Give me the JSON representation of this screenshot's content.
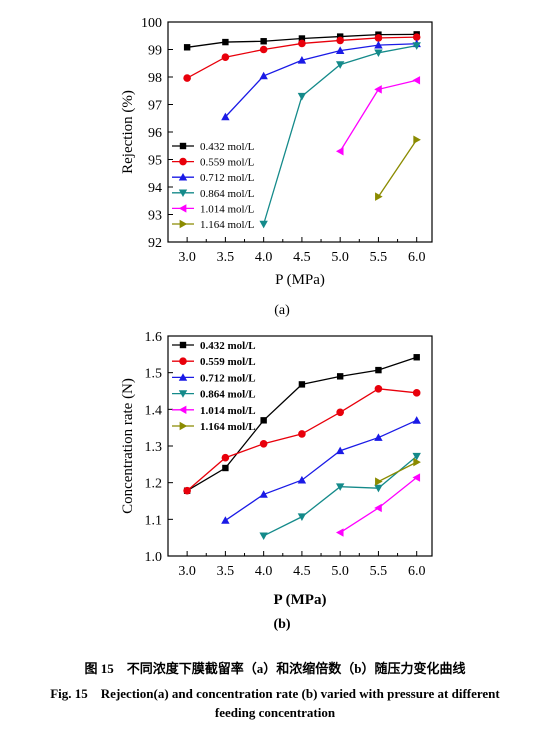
{
  "colors": [
    "#000000",
    "#e8000b",
    "#1a1ae6",
    "#148a8a",
    "#ff00ff",
    "#8b8b00"
  ],
  "chart_data": [
    {
      "type": "line",
      "sublabel": "(a)",
      "xlabel": "P (MPa)",
      "ylabel": "Rejection (%)",
      "xlim": [
        2.75,
        6.2
      ],
      "ylim": [
        92,
        100
      ],
      "xticks": [
        "3.0",
        "3.5",
        "4.0",
        "4.5",
        "5.0",
        "5.5",
        "6.0"
      ],
      "yticks": [
        "92",
        "93",
        "94",
        "95",
        "96",
        "97",
        "98",
        "99",
        "100"
      ],
      "legend_position": "lower-left",
      "series": [
        {
          "name": "0.432 mol/L",
          "marker": "square",
          "x": [
            3.0,
            3.5,
            4.0,
            4.5,
            5.0,
            5.5,
            6.0
          ],
          "y": [
            99.08,
            99.27,
            99.3,
            99.4,
            99.47,
            99.54,
            99.55
          ]
        },
        {
          "name": "0.559 mol/L",
          "marker": "circle",
          "x": [
            3.0,
            3.5,
            4.0,
            4.5,
            5.0,
            5.5,
            6.0
          ],
          "y": [
            97.96,
            98.72,
            99.0,
            99.22,
            99.33,
            99.42,
            99.45
          ]
        },
        {
          "name": "0.712 mol/L",
          "marker": "triangle-up",
          "x": [
            3.5,
            4.0,
            4.5,
            5.0,
            5.5,
            6.0
          ],
          "y": [
            96.55,
            98.04,
            98.61,
            98.96,
            99.16,
            99.21
          ]
        },
        {
          "name": "0.864 mol/L",
          "marker": "triangle-down",
          "x": [
            4.0,
            4.5,
            5.0,
            5.5,
            6.0
          ],
          "y": [
            92.65,
            97.3,
            98.45,
            98.88,
            99.14
          ]
        },
        {
          "name": "1.014 mol/L",
          "marker": "triangle-left",
          "x": [
            5.0,
            5.5,
            6.0
          ],
          "y": [
            95.3,
            97.55,
            97.88
          ]
        },
        {
          "name": "1.164 mol/L",
          "marker": "triangle-right",
          "x": [
            5.5,
            6.0
          ],
          "y": [
            93.65,
            95.72
          ]
        }
      ]
    },
    {
      "type": "line",
      "sublabel": "(b)",
      "xlabel": "P (MPa)",
      "ylabel": "Concentration rate (N)",
      "xlim": [
        2.75,
        6.2
      ],
      "ylim": [
        1.0,
        1.6
      ],
      "xticks": [
        "3.0",
        "3.5",
        "4.0",
        "4.5",
        "5.0",
        "5.5",
        "6.0"
      ],
      "yticks": [
        "1.0",
        "1.1",
        "1.2",
        "1.3",
        "1.4",
        "1.5",
        "1.6"
      ],
      "legend_position": "top-left",
      "series": [
        {
          "name": "0.432 mol/L",
          "marker": "square",
          "x": [
            3.0,
            3.5,
            4.0,
            4.5,
            5.0,
            5.5,
            6.0
          ],
          "y": [
            1.178,
            1.24,
            1.37,
            1.468,
            1.49,
            1.507,
            1.542
          ]
        },
        {
          "name": "0.559 mol/L",
          "marker": "circle",
          "x": [
            3.0,
            3.5,
            4.0,
            4.5,
            5.0,
            5.5,
            6.0
          ],
          "y": [
            1.178,
            1.268,
            1.306,
            1.333,
            1.392,
            1.456,
            1.445
          ]
        },
        {
          "name": "0.712 mol/L",
          "marker": "triangle-up",
          "x": [
            3.5,
            4.0,
            4.5,
            5.0,
            5.5,
            6.0
          ],
          "y": [
            1.097,
            1.168,
            1.207,
            1.287,
            1.323,
            1.37
          ]
        },
        {
          "name": "0.864 mol/L",
          "marker": "triangle-down",
          "x": [
            4.0,
            4.5,
            5.0,
            5.5,
            6.0
          ],
          "y": [
            1.055,
            1.107,
            1.189,
            1.185,
            1.272
          ]
        },
        {
          "name": "1.014 mol/L",
          "marker": "triangle-left",
          "x": [
            5.0,
            5.5,
            6.0
          ],
          "y": [
            1.064,
            1.131,
            1.214
          ]
        },
        {
          "name": "1.164 mol/L",
          "marker": "triangle-right",
          "x": [
            5.5,
            6.0
          ],
          "y": [
            1.203,
            1.256
          ]
        }
      ]
    }
  ],
  "caption": {
    "zh": "图 15　不同浓度下膜截留率（a）和浓缩倍数（b）随压力变化曲线",
    "en_line1": "Fig. 15　Rejection(a) and concentration rate (b) varied with pressure at different",
    "en_line2": "feeding concentration"
  }
}
